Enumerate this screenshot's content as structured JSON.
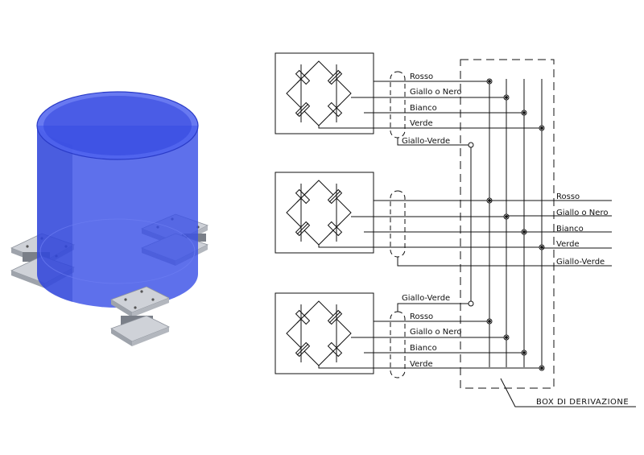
{
  "title": "",
  "colors": {
    "tank": "#3a50e6",
    "tank_edge": "#2a3bc8",
    "plate": "#c9ccd3",
    "plate_dark": "#8e939c",
    "line": "#111111"
  },
  "cells": [
    {
      "wires": [
        "Rosso",
        "Giallo o Nero",
        "Bianco",
        "Verde"
      ],
      "shield": "Giallo-Verde"
    },
    {
      "wires": [],
      "shield": ""
    },
    {
      "wires": [
        "Rosso",
        "Giallo o Nero",
        "Bianco",
        "Verde"
      ],
      "shield": "Giallo-Verde"
    }
  ],
  "outputs": [
    "Rosso",
    "Giallo o Nero",
    "Bianco",
    "Verde",
    "Giallo-Verde"
  ],
  "junction_box_label": "BOX DI DERIVAZIONE"
}
